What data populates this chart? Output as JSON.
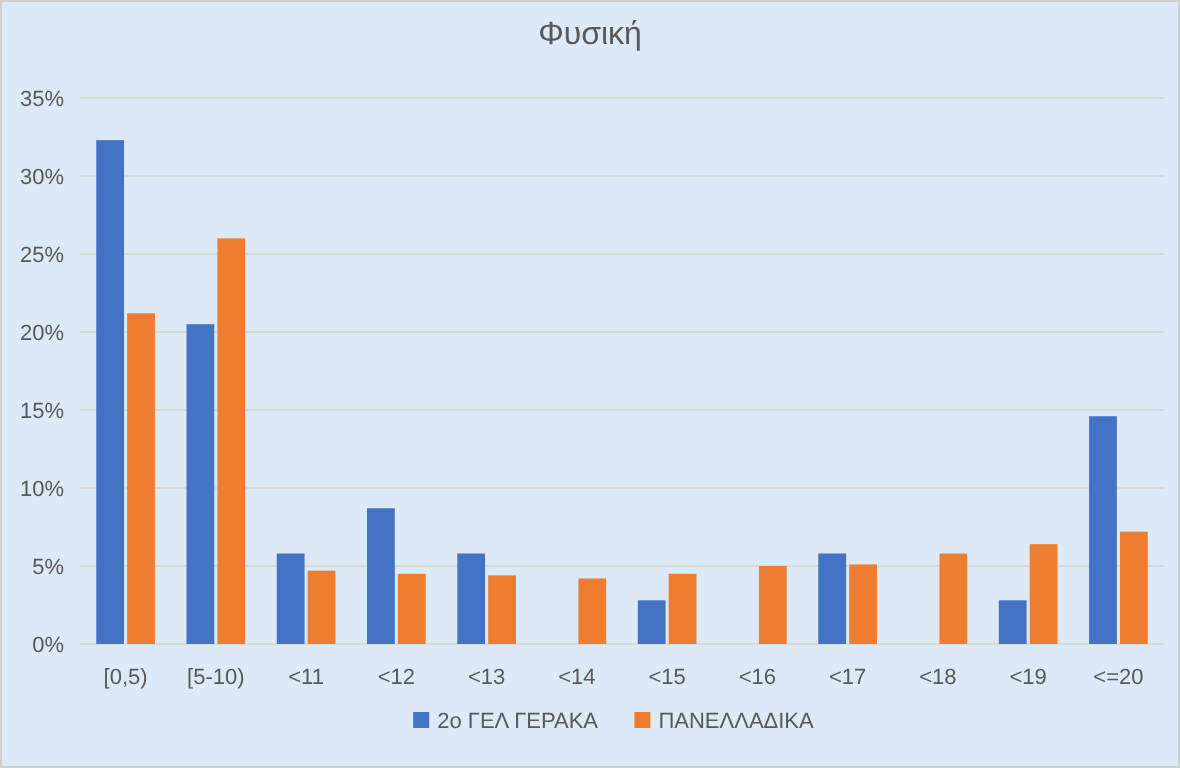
{
  "chart_data": {
    "type": "bar",
    "title": "Φυσική",
    "categories": [
      "[0,5)",
      "[5-10)",
      "<11",
      "<12",
      "<13",
      "<14",
      "<15",
      "<16",
      "<17",
      "<18",
      "<19",
      "<=20"
    ],
    "series": [
      {
        "name": "2ο ΓΕΛ ΓΕΡΑΚΑ",
        "color": "#4472c4",
        "values": [
          32.3,
          20.5,
          5.8,
          8.7,
          5.8,
          0,
          2.8,
          0,
          5.8,
          0,
          2.8,
          14.6
        ]
      },
      {
        "name": "ΠΑΝΕΛΛΑΔΙΚΑ",
        "color": "#ed7d31",
        "values": [
          21.2,
          26.0,
          4.7,
          4.5,
          4.4,
          4.2,
          4.5,
          5.0,
          5.1,
          5.8,
          6.4,
          7.2
        ]
      }
    ],
    "ylim": [
      0,
      35
    ],
    "yticks": [
      {
        "value": 0,
        "label": "0%"
      },
      {
        "value": 5,
        "label": "5%"
      },
      {
        "value": 10,
        "label": "10%"
      },
      {
        "value": 15,
        "label": "15%"
      },
      {
        "value": 20,
        "label": "20%"
      },
      {
        "value": 25,
        "label": "25%"
      },
      {
        "value": 30,
        "label": "30%"
      },
      {
        "value": 35,
        "label": "35%"
      }
    ],
    "grid": "y",
    "legend": "bottom"
  }
}
